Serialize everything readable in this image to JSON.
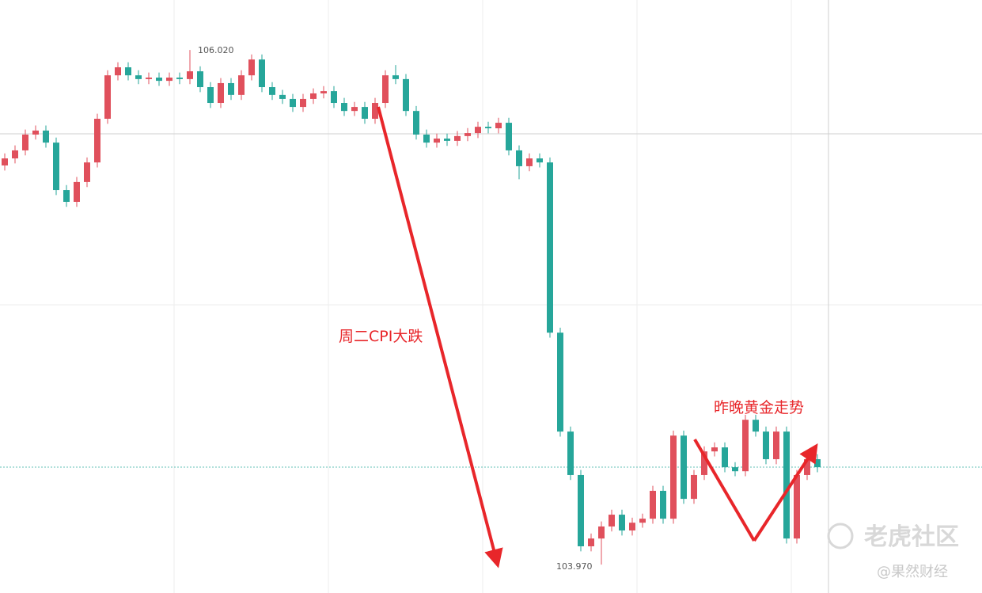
{
  "chart_data": {
    "type": "candlestick",
    "ylim": [
      103.857,
      106.219
    ],
    "up_color": "#e0505c",
    "down_color": "#26a69a",
    "open": [
      105.56,
      105.588,
      105.62,
      105.683,
      105.699,
      105.651,
      105.462,
      105.415,
      105.494,
      105.572,
      105.746,
      105.919,
      105.951,
      105.919,
      105.904,
      105.91,
      105.897,
      105.91,
      105.904,
      105.935,
      105.872,
      105.809,
      105.888,
      105.841,
      105.919,
      105.982,
      105.872,
      105.841,
      105.825,
      105.793,
      105.825,
      105.847,
      105.856,
      105.809,
      105.777,
      105.793,
      105.746,
      105.809,
      105.919,
      105.904,
      105.777,
      105.683,
      105.651,
      105.667,
      105.658,
      105.677,
      105.689,
      105.714,
      105.708,
      105.73,
      105.62,
      105.557,
      105.588,
      105.572,
      104.894,
      104.5,
      104.327,
      104.043,
      104.074,
      104.122,
      104.169,
      104.106,
      104.137,
      104.153,
      104.264,
      104.153,
      104.484,
      104.232,
      104.327,
      104.421,
      104.437,
      104.358,
      104.342,
      104.547,
      104.5,
      104.39,
      104.5,
      104.074,
      104.327,
      104.39
    ],
    "high": [
      105.608,
      105.64,
      105.703,
      105.719,
      105.719,
      105.671,
      105.482,
      105.514,
      105.592,
      105.766,
      105.939,
      105.971,
      105.971,
      105.939,
      105.93,
      105.93,
      105.93,
      105.93,
      106.02,
      105.955,
      105.892,
      105.908,
      105.908,
      105.939,
      106.002,
      106.002,
      105.892,
      105.861,
      105.845,
      105.845,
      105.867,
      105.876,
      105.876,
      105.829,
      105.813,
      105.813,
      105.829,
      105.939,
      105.96,
      105.924,
      105.797,
      105.703,
      105.687,
      105.687,
      105.697,
      105.709,
      105.734,
      105.734,
      105.75,
      105.75,
      105.64,
      105.608,
      105.608,
      105.592,
      104.914,
      104.52,
      104.347,
      104.094,
      104.142,
      104.189,
      104.189,
      104.157,
      104.173,
      104.284,
      104.284,
      104.504,
      104.504,
      104.347,
      104.441,
      104.457,
      104.457,
      104.378,
      104.567,
      104.567,
      104.52,
      104.52,
      104.52,
      104.347,
      104.41,
      104.41
    ],
    "low": [
      105.54,
      105.568,
      105.6,
      105.663,
      105.631,
      105.442,
      105.395,
      105.395,
      105.474,
      105.552,
      105.726,
      105.899,
      105.899,
      105.884,
      105.884,
      105.877,
      105.877,
      105.884,
      105.884,
      105.852,
      105.789,
      105.789,
      105.821,
      105.821,
      105.899,
      105.852,
      105.821,
      105.805,
      105.773,
      105.773,
      105.805,
      105.827,
      105.789,
      105.757,
      105.757,
      105.726,
      105.726,
      105.789,
      105.884,
      105.757,
      105.663,
      105.631,
      105.631,
      105.638,
      105.638,
      105.657,
      105.669,
      105.688,
      105.688,
      105.6,
      105.505,
      105.537,
      105.552,
      104.874,
      104.48,
      104.307,
      104.023,
      104.023,
      103.97,
      104.102,
      104.086,
      104.086,
      104.117,
      104.133,
      104.133,
      104.133,
      104.212,
      104.212,
      104.307,
      104.401,
      104.338,
      104.322,
      104.322,
      104.48,
      104.37,
      104.37,
      104.054,
      104.054,
      104.307,
      104.338
    ],
    "close": [
      105.588,
      105.62,
      105.683,
      105.699,
      105.651,
      105.462,
      105.415,
      105.494,
      105.572,
      105.746,
      105.919,
      105.951,
      105.919,
      105.904,
      105.91,
      105.897,
      105.91,
      105.904,
      105.935,
      105.872,
      105.809,
      105.888,
      105.841,
      105.919,
      105.982,
      105.872,
      105.841,
      105.825,
      105.793,
      105.825,
      105.847,
      105.856,
      105.809,
      105.777,
      105.793,
      105.746,
      105.809,
      105.919,
      105.904,
      105.777,
      105.683,
      105.651,
      105.667,
      105.658,
      105.677,
      105.689,
      105.714,
      105.708,
      105.73,
      105.62,
      105.557,
      105.588,
      105.572,
      104.894,
      104.5,
      104.327,
      104.043,
      104.074,
      104.122,
      104.169,
      104.106,
      104.137,
      104.153,
      104.264,
      104.153,
      104.484,
      104.232,
      104.327,
      104.421,
      104.437,
      104.358,
      104.342,
      104.547,
      104.5,
      104.39,
      104.5,
      104.074,
      104.327,
      104.39,
      104.358
    ],
    "high_label": "106.020",
    "low_label": "103.970",
    "annotations": [
      "周二CPI大跌",
      "昨晚黄金走势"
    ],
    "watermarks": [
      "老虎社区",
      "@果然财经"
    ]
  }
}
